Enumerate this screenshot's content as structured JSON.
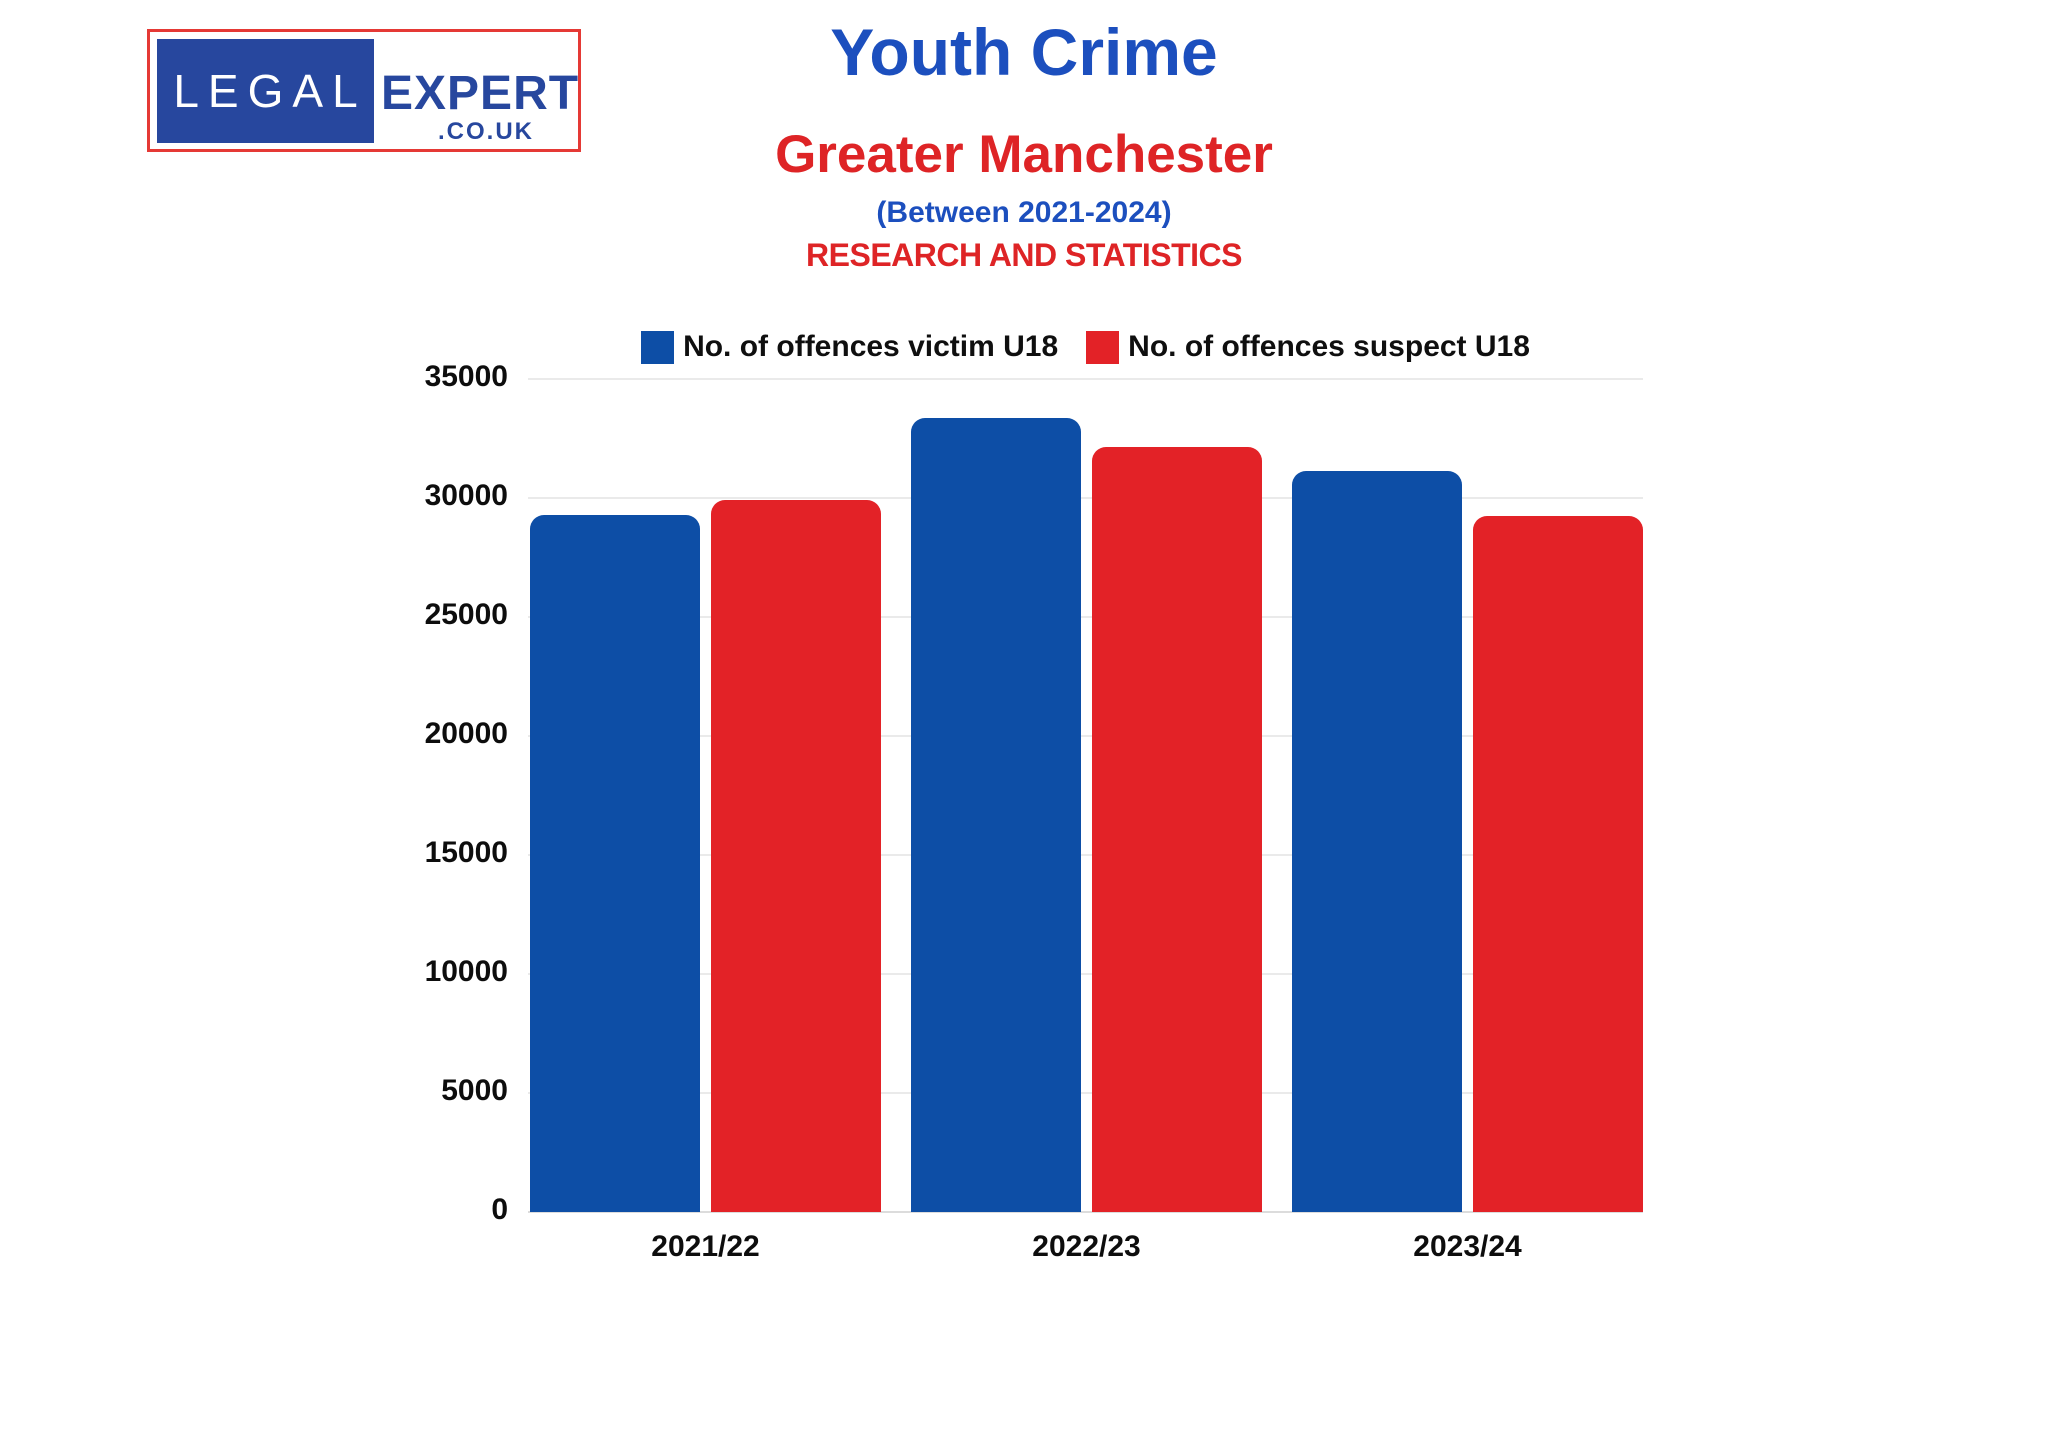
{
  "logo": {
    "legal": "LEGAL",
    "expert": "EXPERT",
    "tld": ".CO.UK"
  },
  "header": {
    "title": "Youth Crime",
    "subtitle": "Greater Manchester",
    "period": "(Between 2021-2024)",
    "tagline": "RESEARCH AND STATISTICS"
  },
  "colors": {
    "bar_blue": "#0d4ea6",
    "bar_red": "#e32227",
    "title_blue": "#1c4fbe",
    "title_red": "#de2426",
    "logo_blue": "#27479e",
    "logo_border_red": "#e53935",
    "axis_text": "#0d0d0d",
    "gridline": "#eaeaea"
  },
  "chart_data": {
    "type": "bar",
    "categories": [
      "2021/22",
      "2022/23",
      "2023/24"
    ],
    "series": [
      {
        "name": "No. of offences victim U18",
        "color": "#0d4ea6",
        "values": [
          29300,
          33350,
          31150
        ]
      },
      {
        "name": "No. of offences suspect U18",
        "color": "#e32227",
        "values": [
          29900,
          32150,
          29250
        ]
      }
    ],
    "title": "Youth Crime - Greater Manchester (Between 2021-2024)",
    "xlabel": "",
    "ylabel": "",
    "ylim": [
      0,
      35000
    ],
    "ytick_step": 5000,
    "grid": true,
    "legend_position": "top"
  }
}
